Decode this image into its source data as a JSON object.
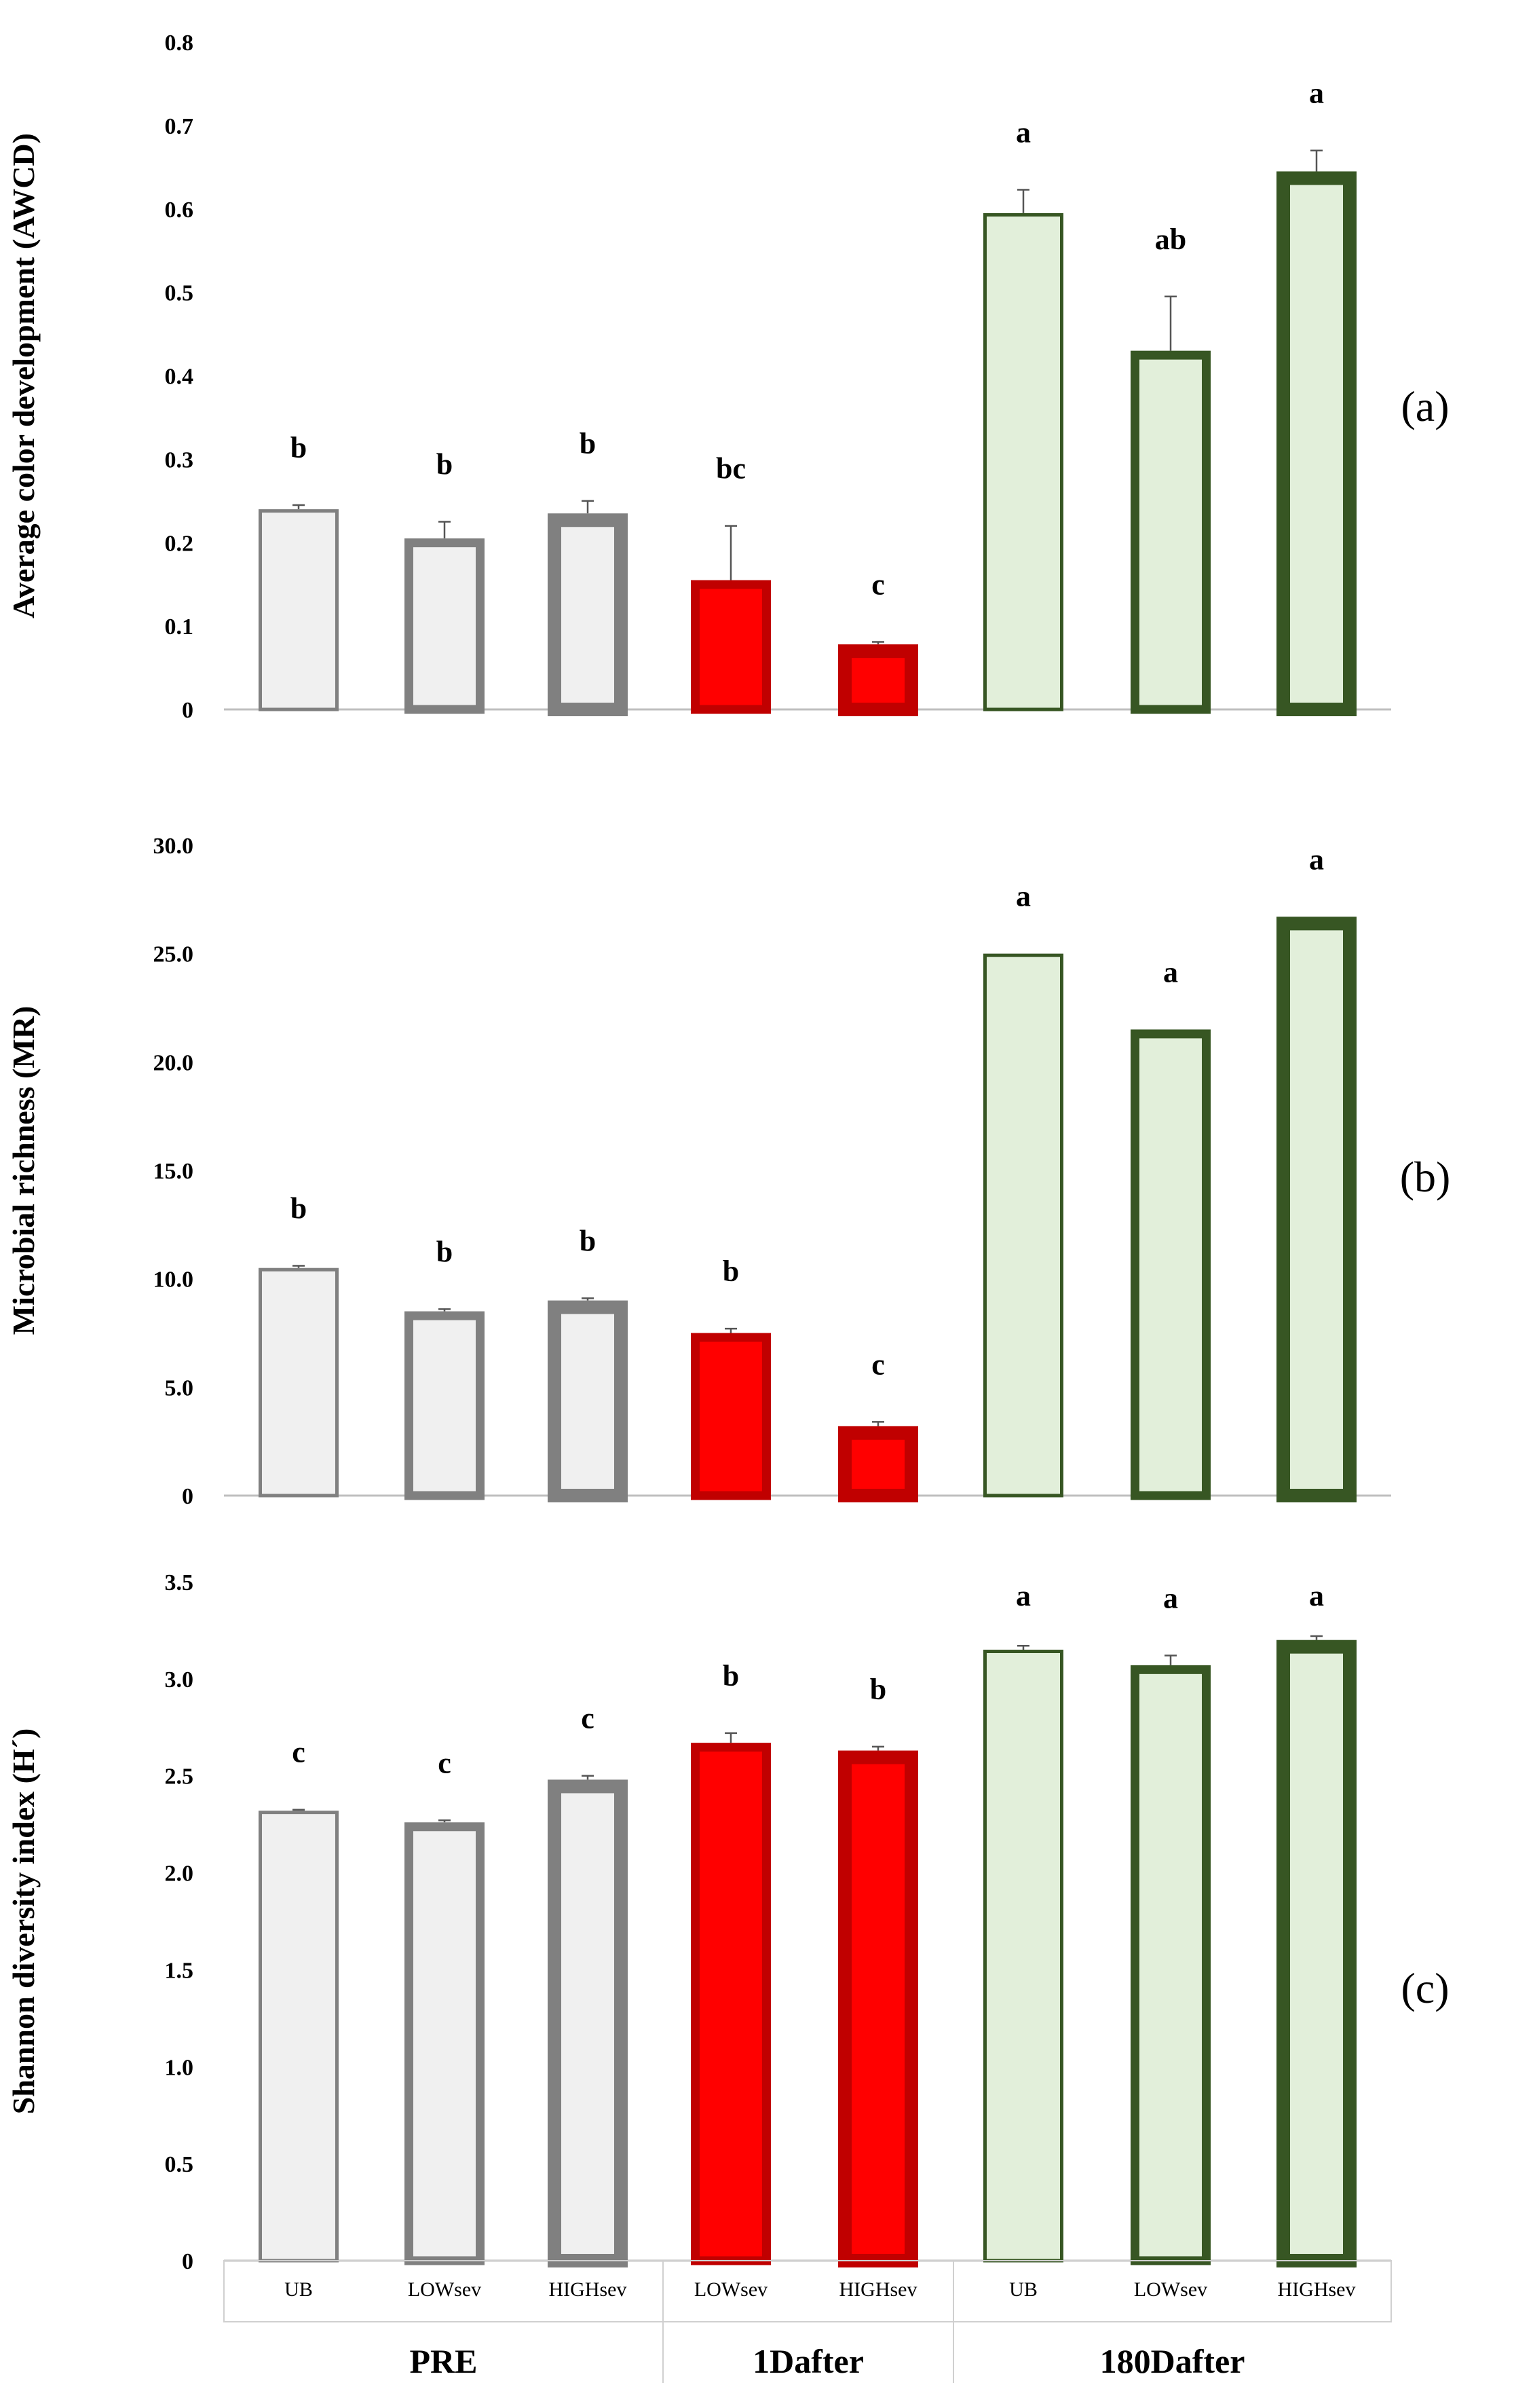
{
  "chart_data": [
    {
      "type": "bar",
      "panel_label": "(a)",
      "ylabel": "Average color development (AWCD)",
      "ylim": [
        0,
        0.8
      ],
      "yticks": [
        "0",
        "0.1",
        "0.2",
        "0.3",
        "0.4",
        "0.5",
        "0.6",
        "0.7",
        "0.8"
      ],
      "categories": [
        "UB",
        "LOWsev",
        "HIGHsev",
        "LOWsev",
        "HIGHsev",
        "UB",
        "LOWsev",
        "HIGHsev"
      ],
      "groups": [
        "PRE",
        "PRE",
        "PRE",
        "1Dafter",
        "1Dafter",
        "180Dafter",
        "180Dafter",
        "180Dafter"
      ],
      "values": [
        0.24,
        0.205,
        0.235,
        0.155,
        0.078,
        0.595,
        0.43,
        0.645
      ],
      "errors": [
        0.005,
        0.02,
        0.015,
        0.065,
        0.003,
        0.028,
        0.065,
        0.025
      ],
      "letters": [
        "b",
        "b",
        "b",
        "bc",
        "c",
        "a",
        "ab",
        "a"
      ]
    },
    {
      "type": "bar",
      "panel_label": "(b)",
      "ylabel": "Microbial richness (MR)",
      "ylim": [
        0,
        30
      ],
      "yticks": [
        "0",
        "5.0",
        "10.0",
        "15.0",
        "20.0",
        "25.0",
        "30.0"
      ],
      "categories": [
        "UB",
        "LOWsev",
        "HIGHsev",
        "LOWsev",
        "HIGHsev",
        "UB",
        "LOWsev",
        "HIGHsev"
      ],
      "groups": [
        "PRE",
        "PRE",
        "PRE",
        "1Dafter",
        "1Dafter",
        "180Dafter",
        "180Dafter",
        "180Dafter"
      ],
      "values": [
        10.5,
        8.5,
        9.0,
        7.5,
        3.2,
        25.0,
        21.5,
        26.7
      ],
      "errors": [
        0.1,
        0.1,
        0.1,
        0.2,
        0.2,
        0,
        0,
        0
      ],
      "letters": [
        "b",
        "b",
        "b",
        "b",
        "c",
        "a",
        "a",
        "a"
      ]
    },
    {
      "type": "bar",
      "panel_label": "(c)",
      "ylabel": "Shannon diversity index (H´)",
      "ylim": [
        0,
        3.5
      ],
      "yticks": [
        "0",
        "0.5",
        "1.0",
        "1.5",
        "2.0",
        "2.5",
        "3.0",
        "3.5"
      ],
      "categories": [
        "UB",
        "LOWsev",
        "HIGHsev",
        "LOWsev",
        "HIGHsev",
        "UB",
        "LOWsev",
        "HIGHsev"
      ],
      "groups": [
        "PRE",
        "PRE",
        "PRE",
        "1Dafter",
        "1Dafter",
        "180Dafter",
        "180Dafter",
        "180Dafter"
      ],
      "values": [
        2.32,
        2.26,
        2.48,
        2.67,
        2.63,
        3.15,
        3.07,
        3.2
      ],
      "errors": [
        0.005,
        0.01,
        0.02,
        0.05,
        0.02,
        0.02,
        0.05,
        0.02
      ],
      "letters": [
        "c",
        "c",
        "c",
        "b",
        "b",
        "a",
        "a",
        "a"
      ]
    }
  ],
  "x_groups": [
    "PRE",
    "1Dafter",
    "180Dafter"
  ],
  "styles": {
    "PRE-UB": {
      "fill": "#f0f0f0",
      "stroke": "#808080",
      "stroke_weight": "thin"
    },
    "PRE-LOWsev": {
      "fill": "#f0f0f0",
      "stroke": "#808080",
      "stroke_weight": "medium"
    },
    "PRE-HIGHsev": {
      "fill": "#f0f0f0",
      "stroke": "#808080",
      "stroke_weight": "thick"
    },
    "1Dafter-LOWsev": {
      "fill": "#ff0000",
      "stroke": "#c00000",
      "stroke_weight": "medium"
    },
    "1Dafter-HIGHsev": {
      "fill": "#ff0000",
      "stroke": "#c00000",
      "stroke_weight": "thick"
    },
    "180Dafter-UB": {
      "fill": "#e2efda",
      "stroke": "#375623",
      "stroke_weight": "thin"
    },
    "180Dafter-LOWsev": {
      "fill": "#e2efda",
      "stroke": "#375623",
      "stroke_weight": "medium"
    },
    "180Dafter-HIGHsev": {
      "fill": "#e2efda",
      "stroke": "#375623",
      "stroke_weight": "thick"
    }
  }
}
